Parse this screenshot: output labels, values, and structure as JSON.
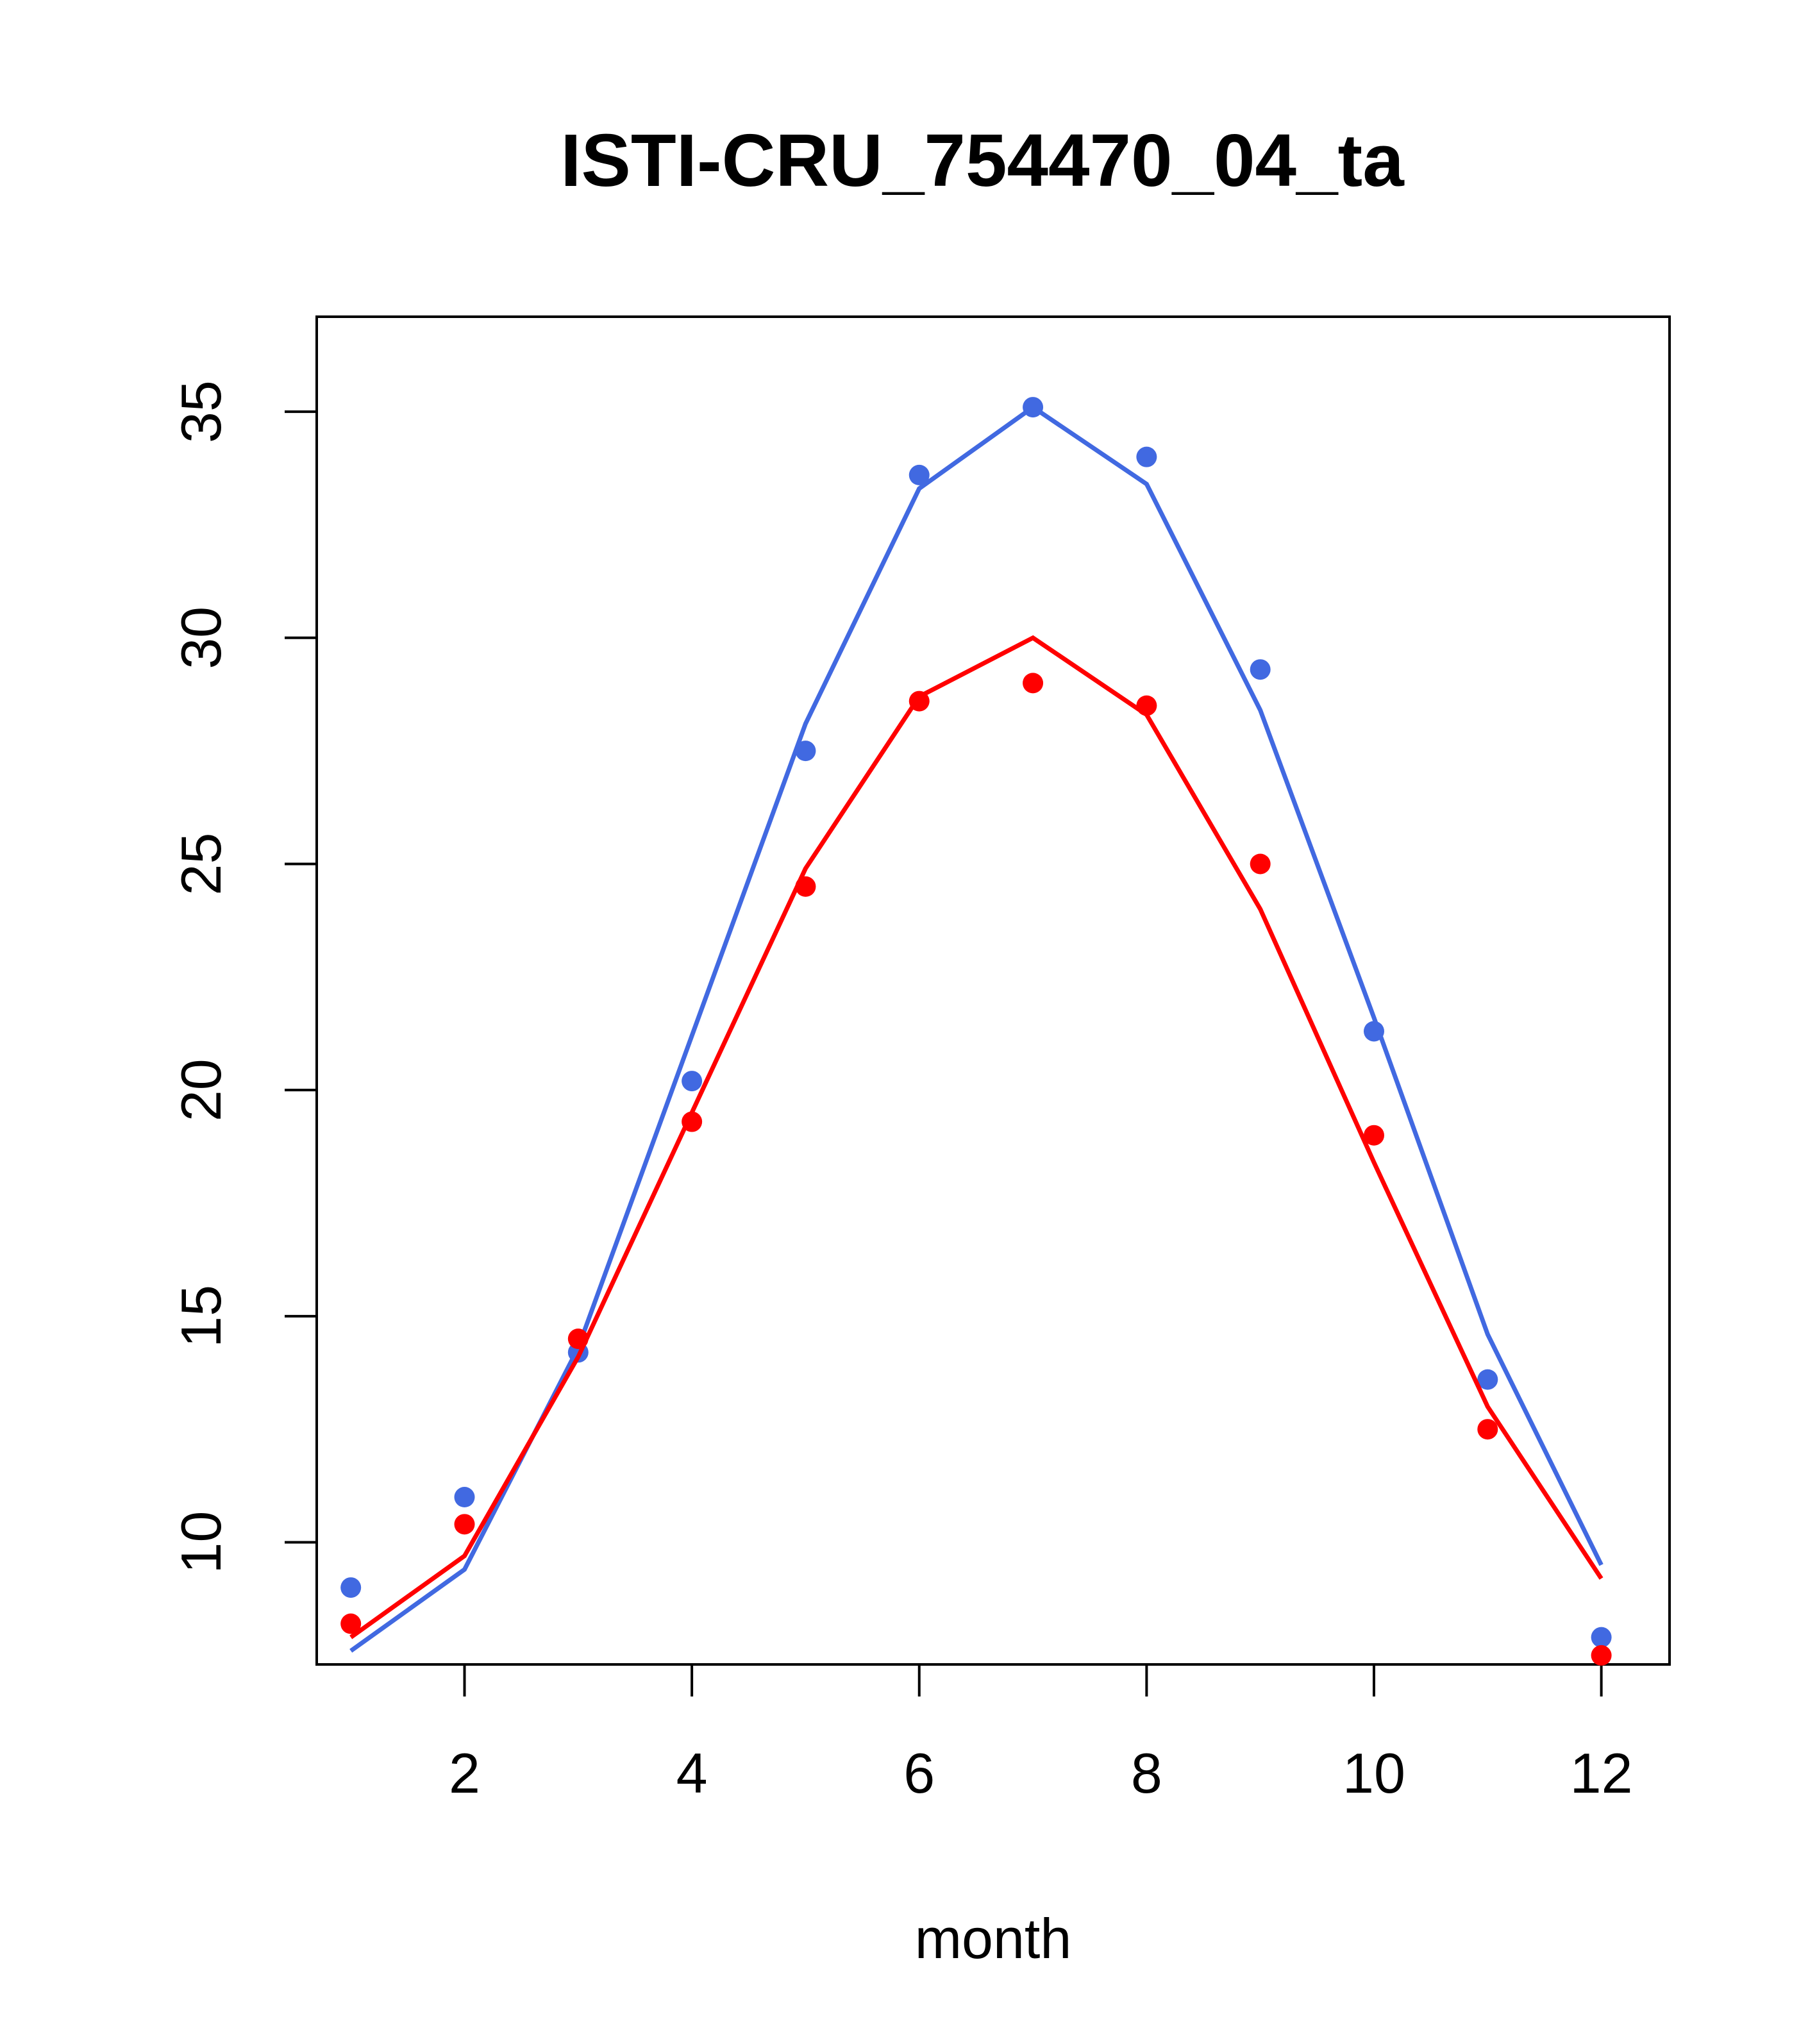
{
  "chart_data": {
    "type": "line",
    "title": "ISTI-CRU_754470_04_ta",
    "xlabel": "month",
    "ylabel": "",
    "xlim": [
      0.7,
      12.6
    ],
    "ylim": [
      7.3,
      37.1
    ],
    "xticks": [
      2,
      4,
      6,
      8,
      10,
      12
    ],
    "yticks": [
      10,
      15,
      20,
      25,
      30,
      35
    ],
    "grid": false,
    "x": [
      1,
      2,
      3,
      4,
      5,
      6,
      7,
      8,
      9,
      10,
      11,
      12
    ],
    "series": [
      {
        "color": "#4169E1",
        "points": [
          9.0,
          11.0,
          14.2,
          20.2,
          27.5,
          33.6,
          35.1,
          34.0,
          29.3,
          21.3,
          13.6,
          7.9
        ],
        "fit": [
          7.6,
          9.4,
          14.3,
          21.2,
          28.1,
          33.3,
          35.1,
          33.4,
          28.4,
          21.6,
          14.6,
          9.5
        ]
      },
      {
        "color": "#FF0000",
        "points": [
          8.2,
          10.4,
          14.5,
          19.3,
          24.5,
          28.6,
          29.0,
          28.5,
          25.0,
          19.0,
          12.5,
          7.5
        ],
        "fit": [
          7.9,
          9.7,
          14.1,
          19.5,
          24.9,
          28.7,
          30.0,
          28.3,
          24.0,
          18.4,
          13.0,
          9.2
        ]
      }
    ]
  }
}
